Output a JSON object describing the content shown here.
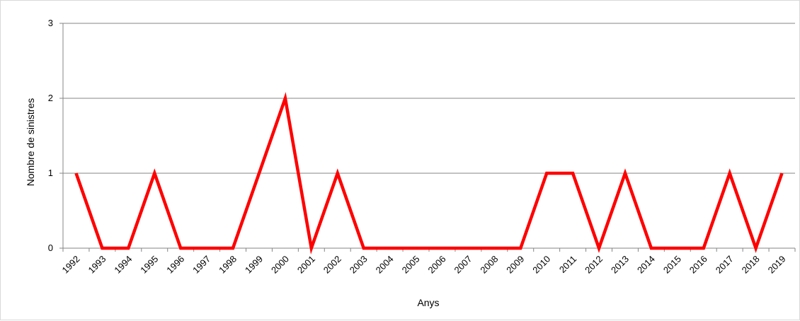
{
  "chart_data": {
    "type": "line",
    "title": "",
    "xlabel": "Anys",
    "ylabel": "Nombre de sinistres",
    "ylim": [
      0,
      3
    ],
    "yticks": [
      "0",
      "1",
      "2",
      "3"
    ],
    "grid": true,
    "legend": "none",
    "categories": [
      "1992",
      "1993",
      "1994",
      "1995",
      "1996",
      "1997",
      "1998",
      "1999",
      "2000",
      "2001",
      "2002",
      "2003",
      "2004",
      "2005",
      "2006",
      "2007",
      "2008",
      "2009",
      "2010",
      "2011",
      "2012",
      "2013",
      "2014",
      "2015",
      "2016",
      "2017",
      "2018",
      "2019"
    ],
    "series": [
      {
        "color": "#ff0000",
        "values": [
          1,
          0,
          0,
          1,
          0,
          0,
          0,
          1,
          2,
          0,
          1,
          0,
          0,
          0,
          0,
          0,
          0,
          0,
          1,
          1,
          0,
          1,
          0,
          0,
          0,
          1,
          0,
          1
        ]
      }
    ]
  }
}
